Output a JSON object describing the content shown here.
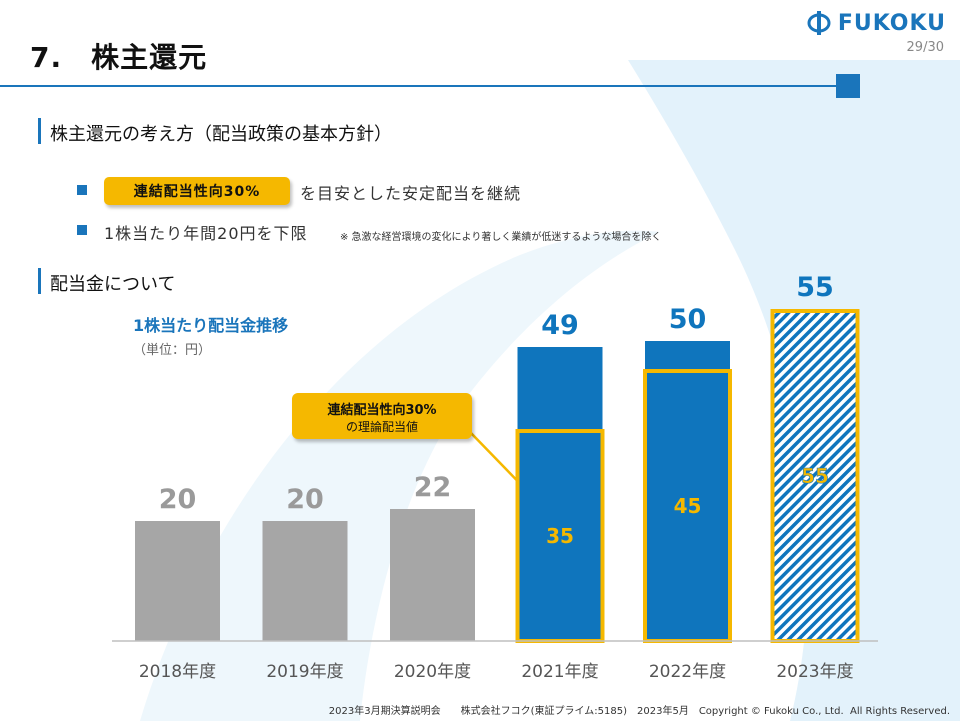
{
  "header": {
    "title": "7.　株主還元",
    "logo_text": "FUKOKU",
    "page_number": "29/30"
  },
  "policy": {
    "heading": "株主還元の考え方（配当政策の基本方針）",
    "bullet1_pill": "連結配当性向30%",
    "bullet1_text": "を目安とした安定配当を継続",
    "bullet2_text": "1株当たり年間20円を下限",
    "bullet2_note": "※ 急激な経営環境の変化により著しく業績が低迷するような場合を除く"
  },
  "dividend": {
    "heading": "配当金について",
    "chart_title": "1株当たり配当金推移",
    "unit": "（単位：円）",
    "callout_line1": "連結配当性向30%",
    "callout_line2": "の理論配当値"
  },
  "chart_data": {
    "type": "bar",
    "title": "1株当たり配当金推移",
    "unit": "（単位：円）",
    "categories": [
      "2018年度",
      "2019年度",
      "2020年度",
      "2021年度",
      "2022年度",
      "2023年度"
    ],
    "series": [
      {
        "values": [
          20,
          20,
          22,
          49,
          50,
          55
        ]
      }
    ],
    "payout30_theoretical": [
      null,
      null,
      null,
      35,
      45,
      55
    ],
    "total_labels": [
      "20",
      "20",
      "22",
      "49",
      "50",
      "55"
    ],
    "payout_labels": [
      null,
      null,
      null,
      "35",
      "45",
      "55"
    ],
    "ylim": [
      0,
      58
    ],
    "grid": false,
    "colors": {
      "past": "#a6a6a6",
      "actual": "#0f75bd",
      "payout_border": "#f5b800",
      "forecast_hatch": "#0f75bd"
    }
  },
  "footer": {
    "text": "2023年3月期決算説明会　　株式会社フコク(東証プライム:5185)　2023年5月　Copyright © Fukoku Co., Ltd.  All Rights Reserved."
  }
}
